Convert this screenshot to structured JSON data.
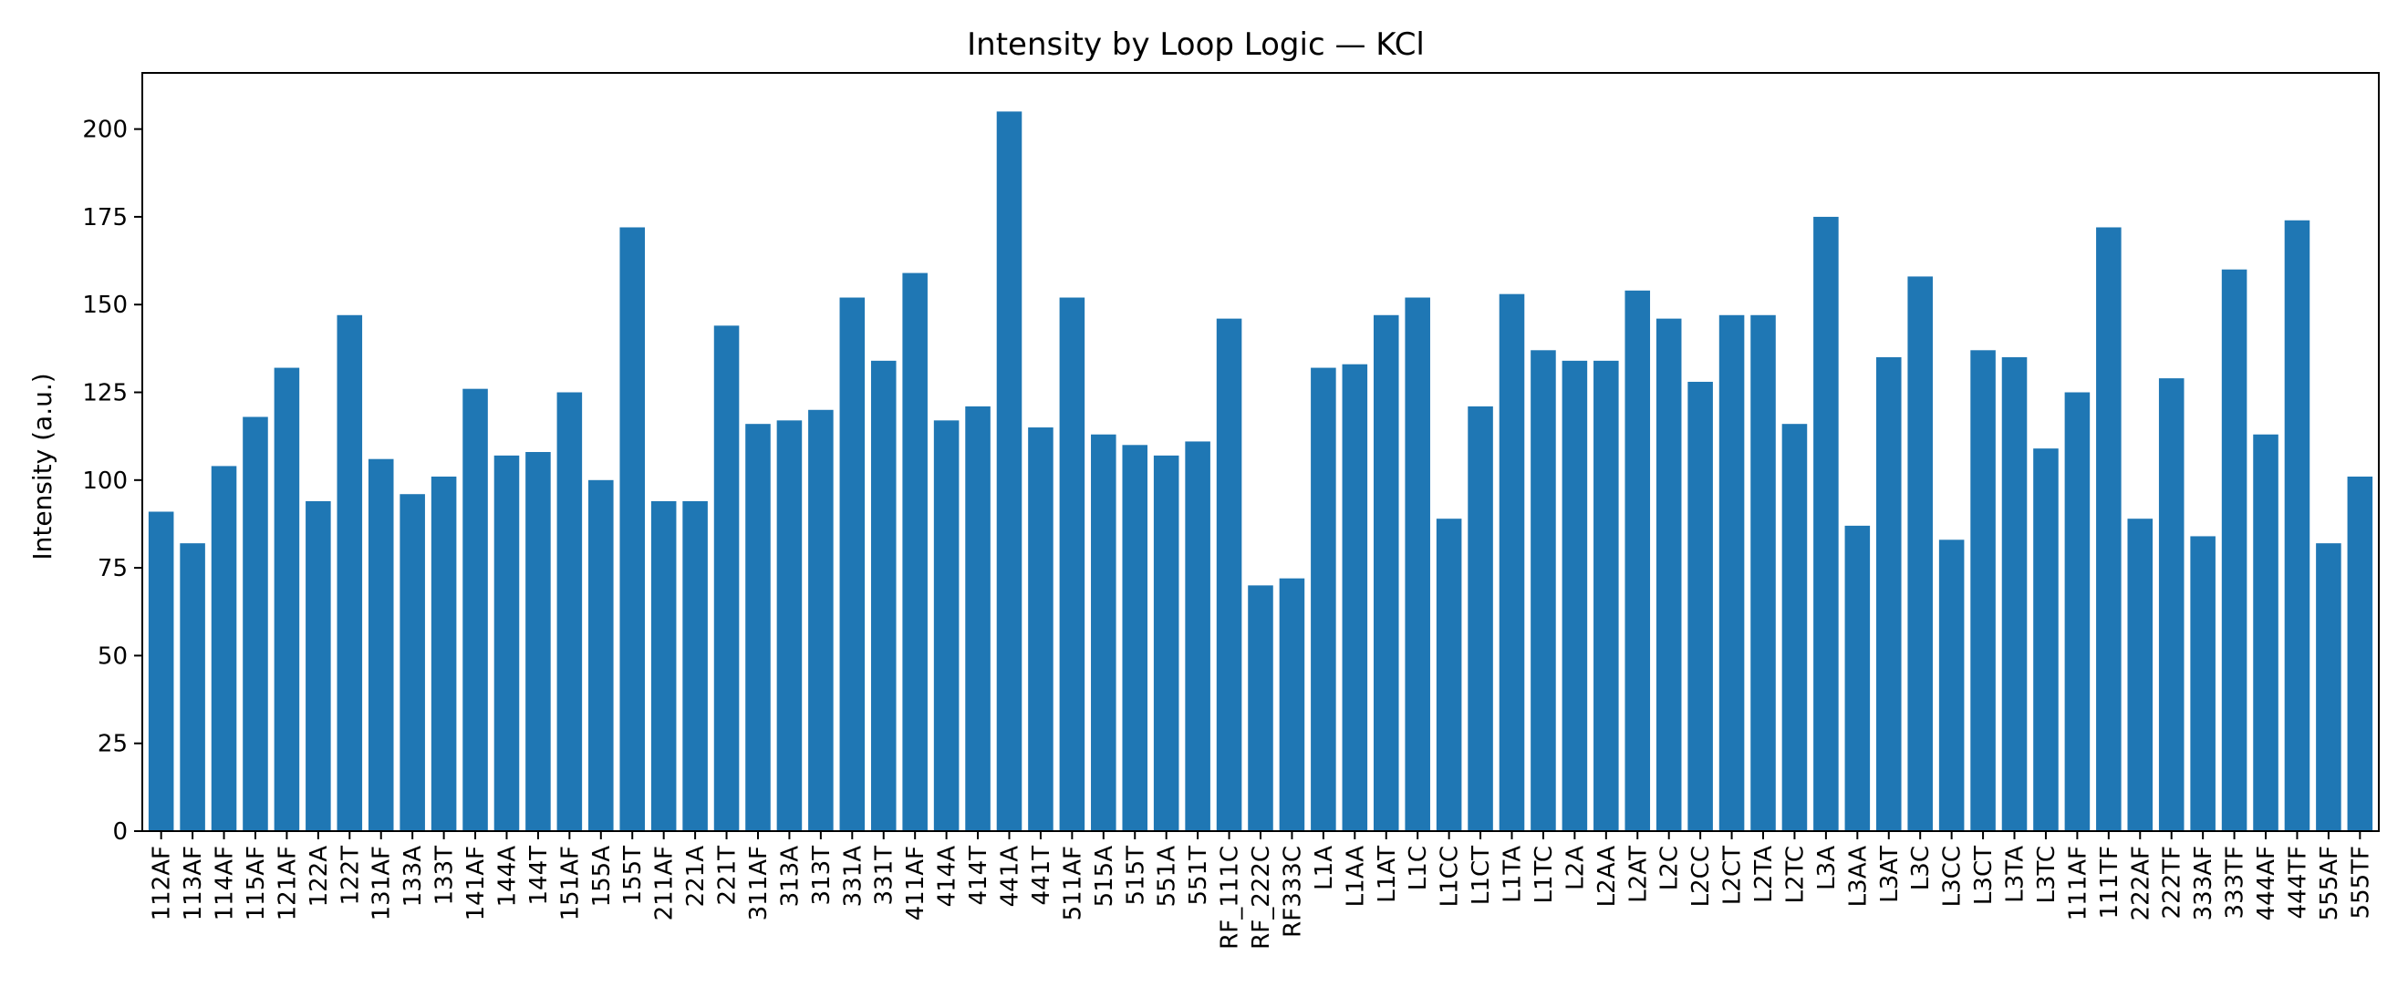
{
  "chart_data": {
    "type": "bar",
    "title": "Intensity by Loop Logic — KCl",
    "xlabel": "",
    "ylabel": "Intensity (a.u.)",
    "ylim": [
      0,
      216
    ],
    "yticks": [
      0,
      25,
      50,
      75,
      100,
      125,
      150,
      175,
      200
    ],
    "grid": false,
    "bar_color": "#1f77b4",
    "categories": [
      "112AF",
      "113AF",
      "114AF",
      "115AF",
      "121AF",
      "122A",
      "122T",
      "131AF",
      "133A",
      "133T",
      "141AF",
      "144A",
      "144T",
      "151AF",
      "155A",
      "155T",
      "211AF",
      "221A",
      "221T",
      "311AF",
      "313A",
      "313T",
      "331A",
      "331T",
      "411AF",
      "414A",
      "414T",
      "441A",
      "441T",
      "511AF",
      "515A",
      "515T",
      "551A",
      "551T",
      "RF_111C",
      "RF_222C",
      "RF333C",
      "L1A",
      "L1AA",
      "L1AT",
      "L1C",
      "L1CC",
      "L1CT",
      "L1TA",
      "L1TC",
      "L2A",
      "L2AA",
      "L2AT",
      "L2C",
      "L2CC",
      "L2CT",
      "L2TA",
      "L2TC",
      "L3A",
      "L3AA",
      "L3AT",
      "L3C",
      "L3CC",
      "L3CT",
      "L3TA",
      "L3TC",
      "111AF",
      "111TF",
      "222AF",
      "222TF",
      "333AF",
      "333TF",
      "444AF",
      "444TF",
      "555AF",
      "555TF"
    ],
    "values": [
      91,
      82,
      104,
      118,
      132,
      94,
      147,
      106,
      96,
      101,
      126,
      107,
      108,
      125,
      100,
      172,
      94,
      94,
      144,
      116,
      117,
      120,
      152,
      134,
      159,
      117,
      121,
      205,
      115,
      152,
      113,
      110,
      107,
      111,
      146,
      70,
      72,
      132,
      133,
      147,
      152,
      89,
      121,
      153,
      137,
      134,
      134,
      154,
      146,
      128,
      147,
      147,
      116,
      175,
      87,
      135,
      158,
      83,
      137,
      135,
      109,
      125,
      172,
      89,
      129,
      84,
      160,
      113,
      174,
      82,
      101
    ]
  }
}
